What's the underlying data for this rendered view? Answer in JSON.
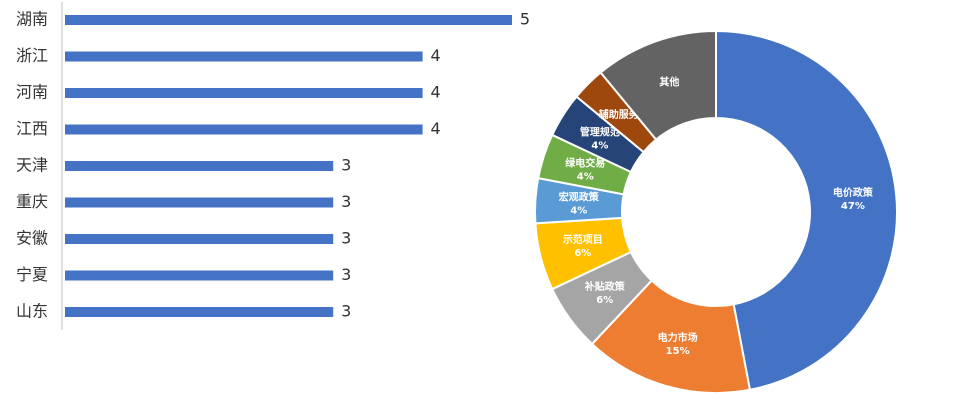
{
  "chart_data": [
    {
      "type": "hbar",
      "categories": [
        "湖南",
        "浙江",
        "河南",
        "江西",
        "天津",
        "重庆",
        "安徽",
        "宁夏",
        "山东"
      ],
      "values": [
        5,
        4,
        4,
        4,
        3,
        3,
        3,
        3,
        3
      ],
      "color": "#4472c4"
    },
    {
      "type": "donut",
      "categories": [
        "电价政策",
        "电力市场",
        "补贴政策",
        "示范项目",
        "宏观政策",
        "绿电交易",
        "管理规范",
        "辅助服务",
        "其他"
      ],
      "values": [
        47,
        15,
        6,
        6,
        4,
        4,
        4,
        3,
        11
      ],
      "value_labels": [
        "47%",
        "15%",
        "6%",
        "6%",
        "4%",
        "4%",
        "4%",
        null,
        null
      ],
      "colors": [
        "#4472c4",
        "#ed7d31",
        "#a5a5a5",
        "#ffc000",
        "#5b9bd5",
        "#70ad47",
        "#264478",
        "#9e480e",
        "#636363"
      ]
    }
  ]
}
